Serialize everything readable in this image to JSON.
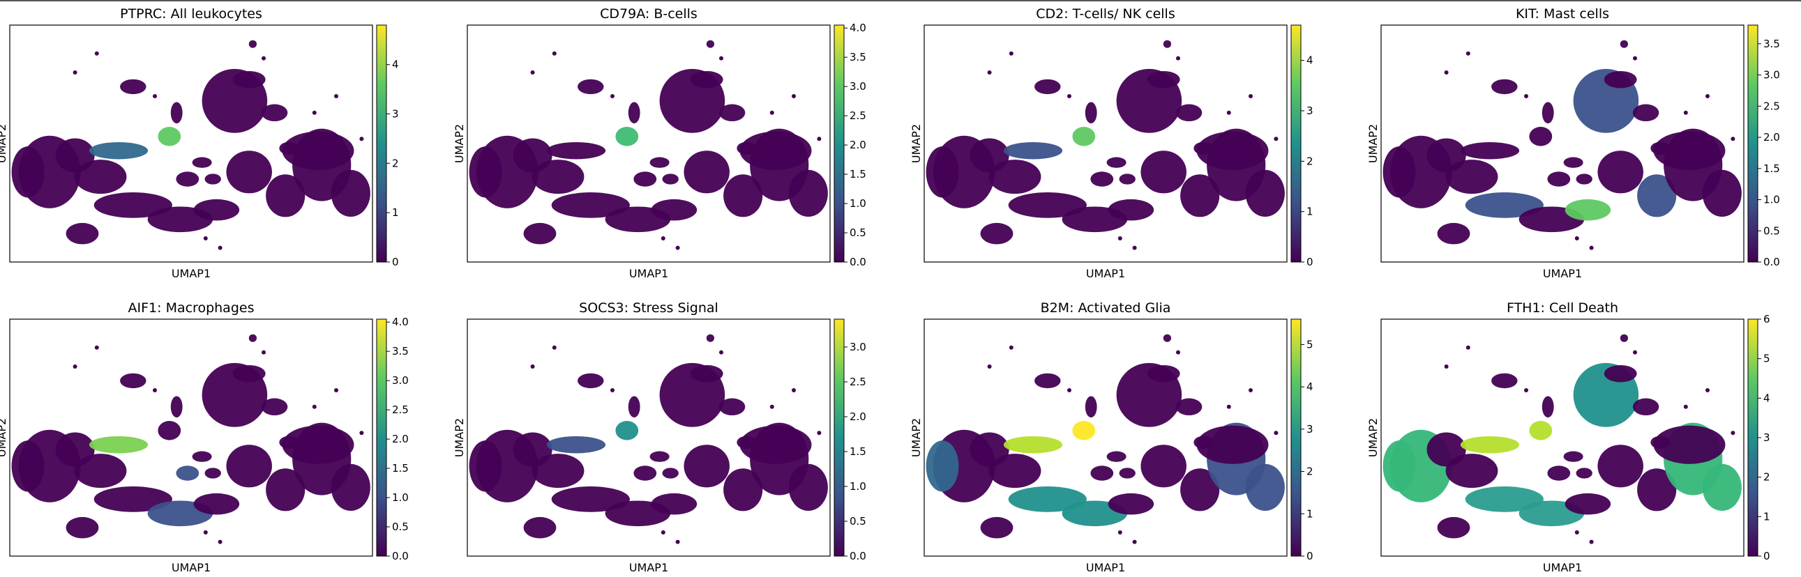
{
  "chart_data": [
    {
      "type": "scatter",
      "title": "PTPRC: All leukocytes",
      "xlabel": "UMAP1",
      "ylabel": "UMAP2",
      "colorbar": {
        "ticks": [
          "0",
          "1",
          "2",
          "3",
          "4"
        ],
        "max": 4.8
      },
      "grid": false
    },
    {
      "type": "scatter",
      "title": "CD79A: B-cells",
      "xlabel": "UMAP1",
      "ylabel": "UMAP2",
      "colorbar": {
        "ticks": [
          "0.0",
          "0.5",
          "1.0",
          "1.5",
          "2.0",
          "2.5",
          "3.0",
          "3.5",
          "4.0"
        ],
        "max": 4.05
      },
      "grid": false
    },
    {
      "type": "scatter",
      "title": "CD2: T-cells/ NK cells",
      "xlabel": "UMAP1",
      "ylabel": "UMAP2",
      "colorbar": {
        "ticks": [
          "0",
          "1",
          "2",
          "3",
          "4"
        ],
        "max": 4.7
      },
      "grid": false
    },
    {
      "type": "scatter",
      "title": "KIT: Mast cells",
      "xlabel": "UMAP1",
      "ylabel": "UMAP2",
      "colorbar": {
        "ticks": [
          "0.0",
          "0.5",
          "1.0",
          "1.5",
          "2.0",
          "2.5",
          "3.0",
          "3.5"
        ],
        "max": 3.8
      },
      "grid": false
    },
    {
      "type": "scatter",
      "title": "AIF1: Macrophages",
      "xlabel": "UMAP1",
      "ylabel": "UMAP2",
      "colorbar": {
        "ticks": [
          "0.0",
          "0.5",
          "1.0",
          "1.5",
          "2.0",
          "2.5",
          "3.0",
          "3.5",
          "4.0"
        ],
        "max": 4.05
      },
      "grid": false
    },
    {
      "type": "scatter",
      "title": "SOCS3: Stress Signal",
      "xlabel": "UMAP1",
      "ylabel": "UMAP2",
      "colorbar": {
        "ticks": [
          "0.0",
          "0.5",
          "1.0",
          "1.5",
          "2.0",
          "2.5",
          "3.0"
        ],
        "max": 3.4
      },
      "grid": false
    },
    {
      "type": "scatter",
      "title": "B2M: Activated Glia",
      "xlabel": "UMAP1",
      "ylabel": "UMAP2",
      "colorbar": {
        "ticks": [
          "0",
          "1",
          "2",
          "3",
          "4",
          "5"
        ],
        "max": 5.6
      },
      "grid": false
    },
    {
      "type": "scatter",
      "title": "FTH1: Cell Death",
      "xlabel": "UMAP1",
      "ylabel": "UMAP2",
      "colorbar": {
        "ticks": [
          "0",
          "1",
          "2",
          "3",
          "4",
          "5",
          "6"
        ],
        "max": 6.0
      },
      "grid": false
    }
  ],
  "colormap": [
    "#440154",
    "#3b528b",
    "#21918c",
    "#5ec962",
    "#fde725"
  ]
}
